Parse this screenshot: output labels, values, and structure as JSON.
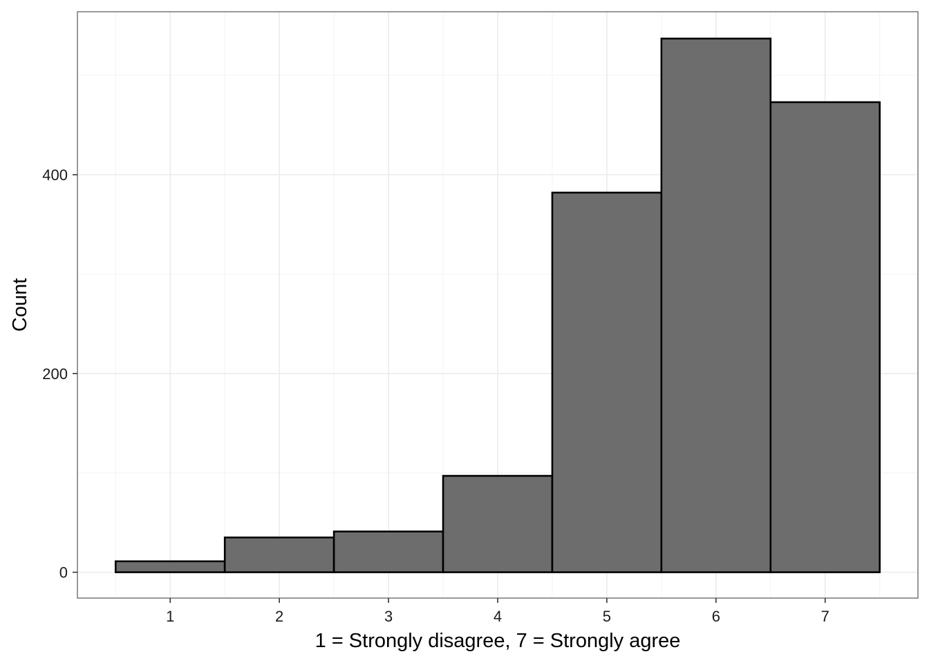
{
  "chart_data": {
    "type": "bar",
    "xlabel": "1 = Strongly disagree, 7 = Strongly agree",
    "ylabel": "Count",
    "categories": [
      "1",
      "2",
      "3",
      "4",
      "5",
      "6",
      "7"
    ],
    "values": [
      11,
      35,
      41,
      97,
      382,
      537,
      473
    ],
    "ylim": [
      -26,
      564
    ],
    "xlim": [
      0.15,
      7.85
    ],
    "yticks": [
      0,
      200,
      400
    ],
    "ytick_labels": [
      "0",
      "200",
      "400"
    ],
    "grid": true,
    "legend": "none",
    "colors": {
      "bar_fill": "#6d6d6d",
      "bar_outline": "#000000",
      "grid_major": "#ebebeb",
      "grid_minor": "#f5f5f5",
      "panel_border": "#7f7f7f"
    }
  }
}
